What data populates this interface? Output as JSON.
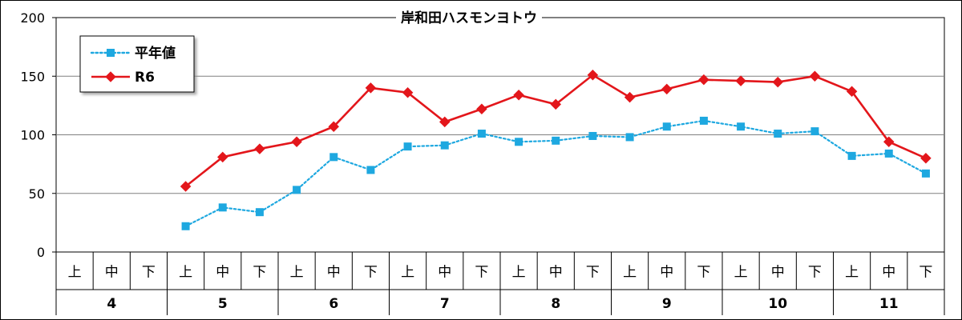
{
  "chart_data": {
    "type": "line",
    "title": "岸和田ハスモンヨトウ",
    "xlabel": "",
    "ylabel": "",
    "ylim": [
      0,
      200
    ],
    "yticks": [
      0,
      50,
      100,
      150,
      200
    ],
    "grid": true,
    "legend_position": "top-left",
    "categories": [
      "上",
      "中",
      "下",
      "上",
      "中",
      "下",
      "上",
      "中",
      "下",
      "上",
      "中",
      "下",
      "上",
      "中",
      "下",
      "上",
      "中",
      "下",
      "上",
      "中",
      "下",
      "上",
      "中",
      "下"
    ],
    "month_groups": [
      {
        "label": "4",
        "count": 3
      },
      {
        "label": "5",
        "count": 3
      },
      {
        "label": "6",
        "count": 3
      },
      {
        "label": "7",
        "count": 3
      },
      {
        "label": "8",
        "count": 3
      },
      {
        "label": "9",
        "count": 3
      },
      {
        "label": "10",
        "count": 3
      },
      {
        "label": "11",
        "count": 3
      }
    ],
    "series": [
      {
        "name": "平年値",
        "color": "#1EA8E0",
        "line_style": "dotted",
        "marker": "square",
        "values": [
          null,
          null,
          null,
          22,
          38,
          34,
          53,
          81,
          70,
          90,
          91,
          101,
          94,
          95,
          99,
          98,
          107,
          112,
          107,
          101,
          103,
          82,
          84,
          67
        ]
      },
      {
        "name": "R6",
        "color": "#E3161B",
        "line_style": "solid",
        "marker": "diamond",
        "values": [
          null,
          null,
          null,
          56,
          81,
          88,
          94,
          107,
          140,
          136,
          111,
          122,
          134,
          126,
          151,
          132,
          139,
          147,
          146,
          145,
          150,
          137,
          94,
          80
        ]
      }
    ]
  }
}
